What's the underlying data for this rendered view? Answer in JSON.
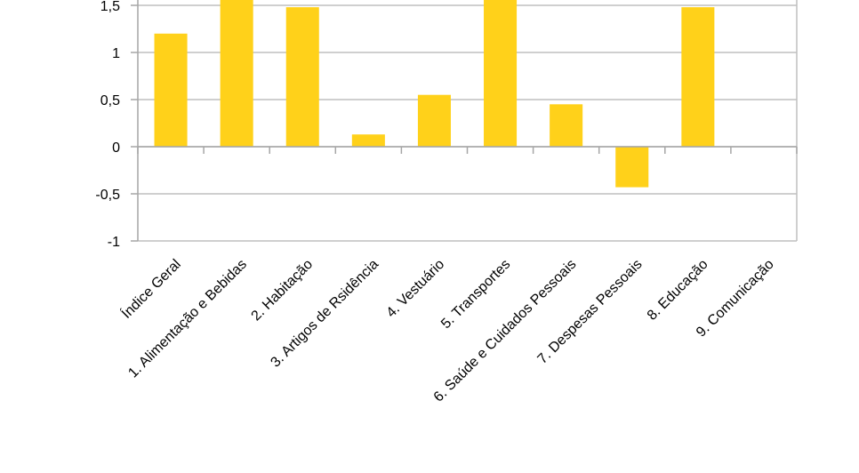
{
  "chart_data": {
    "type": "bar",
    "categories": [
      "Índice Geral",
      "1. Alimentação e Bebidas",
      "2. Habitação",
      "3. Artigos de Rsidência",
      "4. Vestuário",
      "5. Transportes",
      "6. Saúde e Cuidados Pessoais",
      "7. Despesas Pessoais",
      "8. Educação",
      "9. Comunicação"
    ],
    "values": [
      1.2,
      1.66,
      1.48,
      0.13,
      0.55,
      1.66,
      0.45,
      -0.43,
      1.48,
      0
    ],
    "yticks": [
      "-1",
      "-0,5",
      "0",
      "0,5",
      "1",
      "1,5"
    ],
    "ylim": [
      -1,
      1.5
    ],
    "grid": true,
    "bar_color": "#FFD11A",
    "grid_color": "#BFBFBF",
    "axis_color": "#A6A6A6"
  }
}
